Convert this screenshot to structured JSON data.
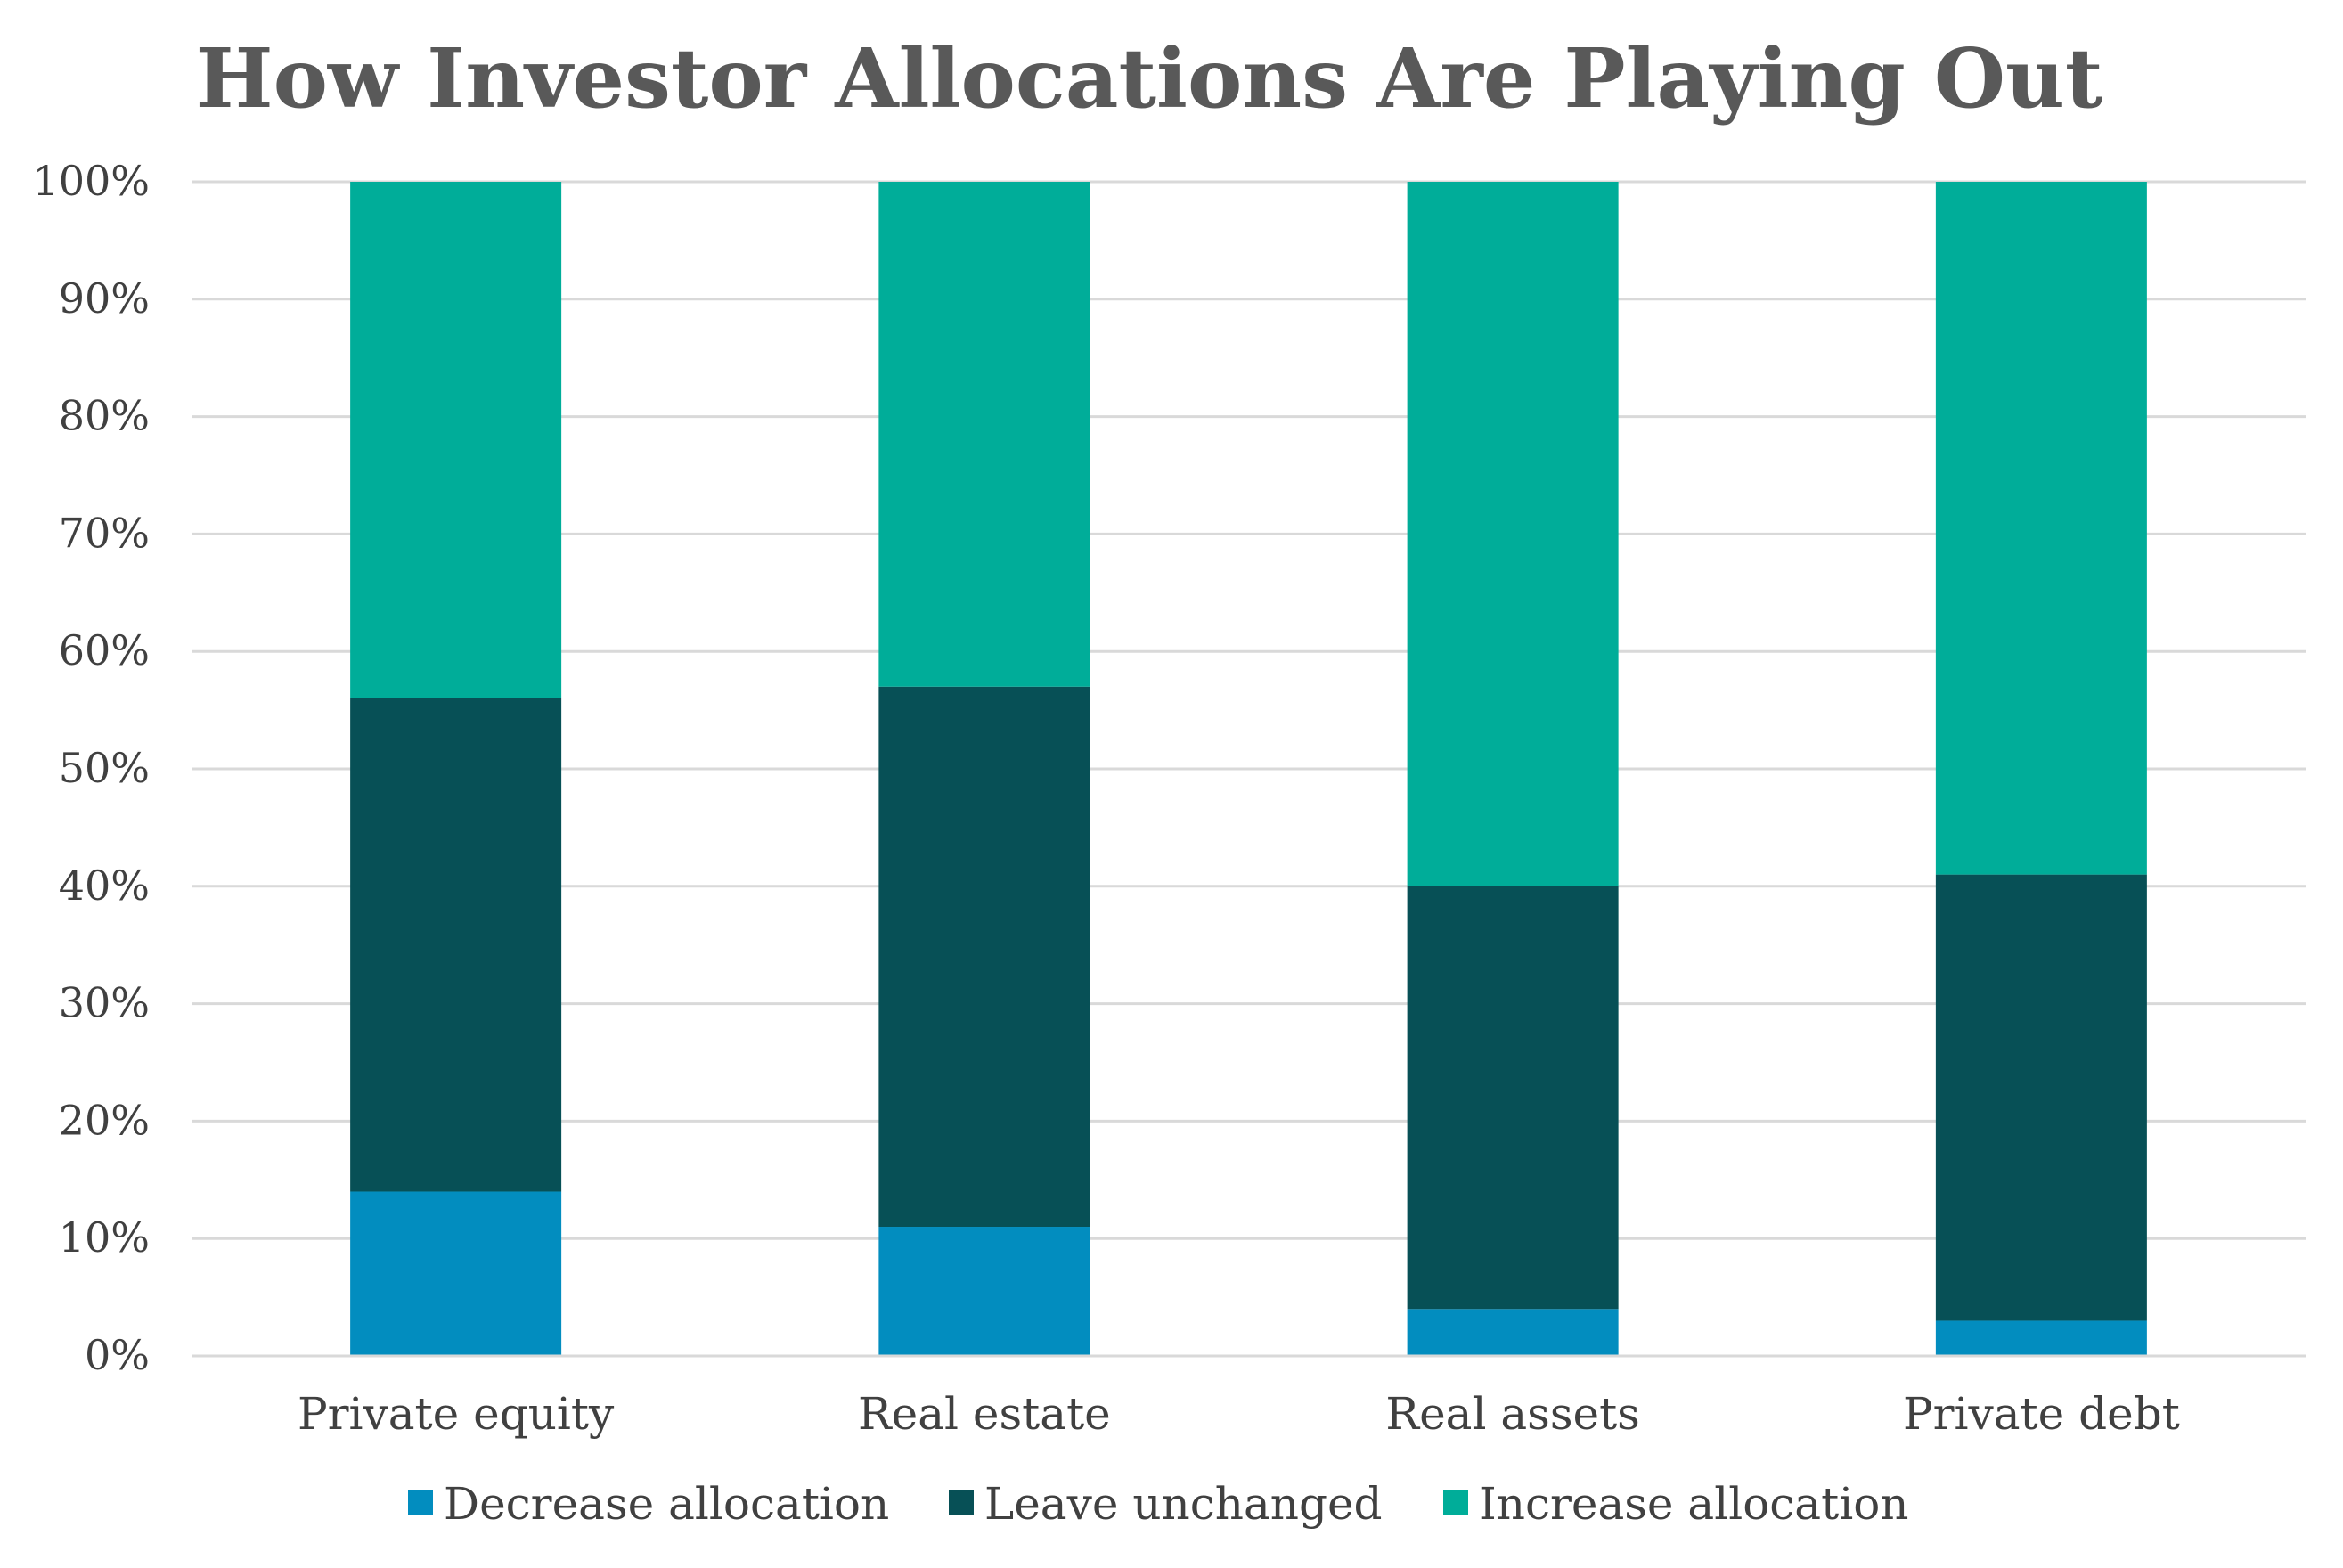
{
  "chart_data": {
    "type": "bar",
    "stacked": true,
    "title": "How Investor Allocations Are Playing Out",
    "xlabel": "",
    "ylabel": "",
    "ylim": [
      0,
      100
    ],
    "y_ticks": [
      "0%",
      "10%",
      "20%",
      "30%",
      "40%",
      "50%",
      "60%",
      "70%",
      "80%",
      "90%",
      "100%"
    ],
    "grid": true,
    "legend_position": "bottom",
    "categories": [
      "Private equity",
      "Real estate",
      "Real assets",
      "Private debt"
    ],
    "series": [
      {
        "name": "Decrease allocation",
        "color": "#028dbf",
        "values": [
          14,
          11,
          4,
          3
        ]
      },
      {
        "name": "Leave unchanged",
        "color": "#075056",
        "values": [
          42,
          46,
          36,
          38
        ]
      },
      {
        "name": "Increase allocation",
        "color": "#00ad99",
        "values": [
          44,
          43,
          60,
          59
        ]
      }
    ]
  }
}
